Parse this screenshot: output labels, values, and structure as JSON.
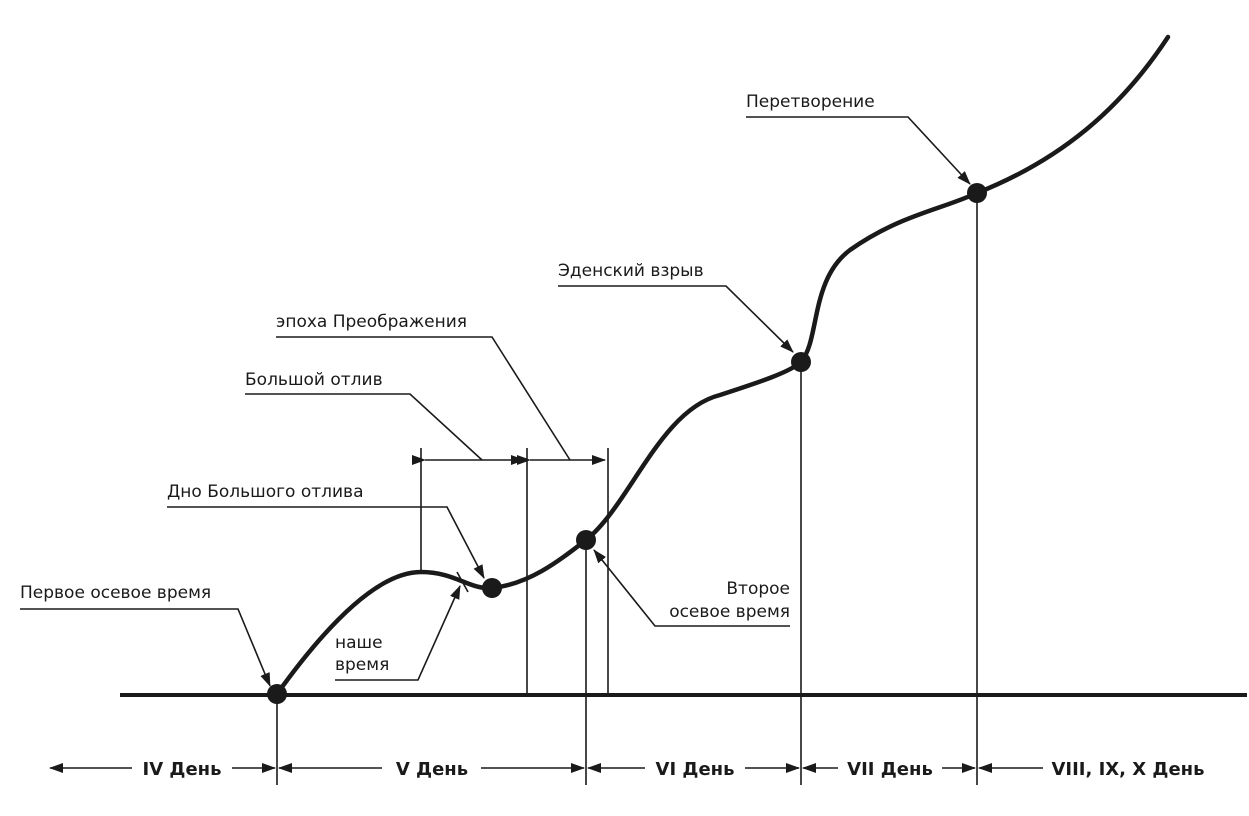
{
  "annotations": {
    "first_axial": "Первое осевое время",
    "bottom_great_ebb": "Дно Большого отлива",
    "our_time_line1": "наше",
    "our_time_line2": "время",
    "great_ebb": "Большой отлив",
    "transfiguration_epoch": "эпоха Преображения",
    "second_axial_line1": "Второе",
    "second_axial_line2": "осевое время",
    "eden_explosion": "Эденский взрыв",
    "transformation": "Перетворение"
  },
  "days": [
    {
      "label": "IV День"
    },
    {
      "label": "V День"
    },
    {
      "label": "VI День"
    },
    {
      "label": "VII День"
    },
    {
      "label": "VIII, IX, X День"
    }
  ]
}
